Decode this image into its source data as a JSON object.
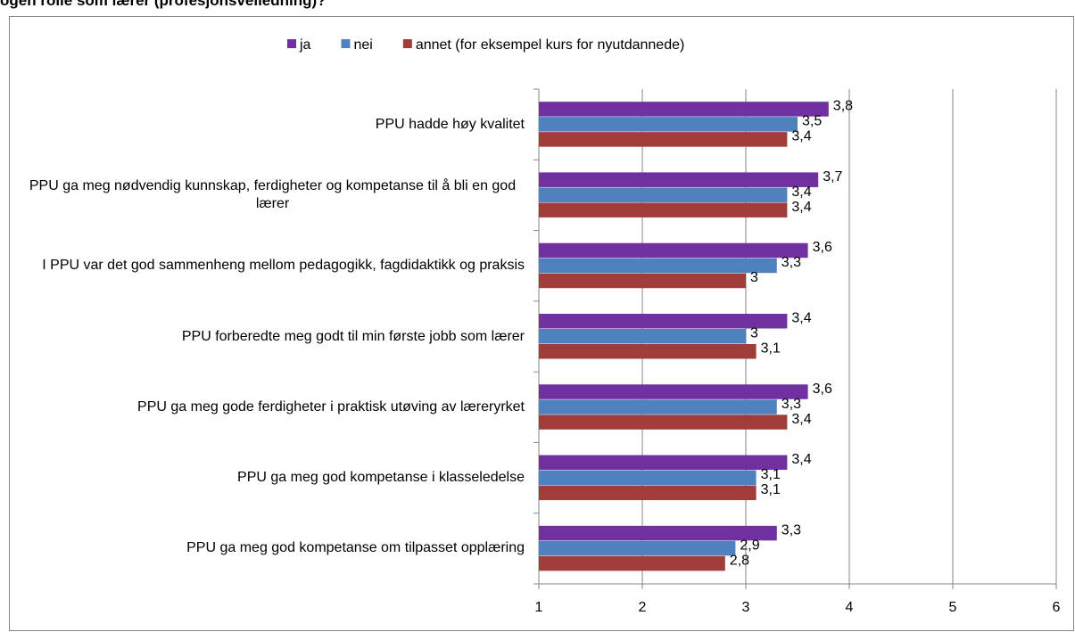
{
  "chart_data": {
    "type": "barh",
    "title": "ogen rolle som lærer (profesjonsveiledning)?",
    "categories": [
      "PPU hadde høy kvalitet",
      "PPU ga meg nødvendig kunnskap, ferdigheter og kompetanse til å bli en god lærer",
      "I PPU var det god sammenheng mellom pedagogikk, fagdidaktikk og praksis",
      "PPU forberedte meg godt til min første jobb som lærer",
      "PPU ga meg gode ferdigheter i praktisk utøving av læreryrket",
      "PPU ga meg god kompetanse i klasseledelse",
      "PPU ga meg god kompetanse om tilpasset opplæring"
    ],
    "series": [
      {
        "name": "ja",
        "color": "#7030a0",
        "values": [
          3.8,
          3.7,
          3.6,
          3.4,
          3.6,
          3.4,
          3.3
        ],
        "value_labels": [
          "3,8",
          "3,7",
          "3,6",
          "3,4",
          "3,6",
          "3,4",
          "3,3"
        ]
      },
      {
        "name": "nei",
        "color": "#4f81bd",
        "values": [
          3.5,
          3.4,
          3.3,
          3,
          3.3,
          3.1,
          2.9
        ],
        "value_labels": [
          "3,5",
          "3,4",
          "3,3",
          "3",
          "3,3",
          "3,1",
          "2,9"
        ]
      },
      {
        "name": "annet (for eksempel kurs for nyutdannede)",
        "color": "#a03c3a",
        "values": [
          3.4,
          3.4,
          3,
          3.1,
          3.4,
          3.1,
          2.8
        ],
        "value_labels": [
          "3,4",
          "3,4",
          "3",
          "3,1",
          "3,4",
          "3,1",
          "2,8"
        ]
      }
    ],
    "xlim": [
      1,
      6
    ],
    "xticks": [
      1,
      2,
      3,
      4,
      5,
      6
    ],
    "grid": true,
    "legend": "top"
  }
}
